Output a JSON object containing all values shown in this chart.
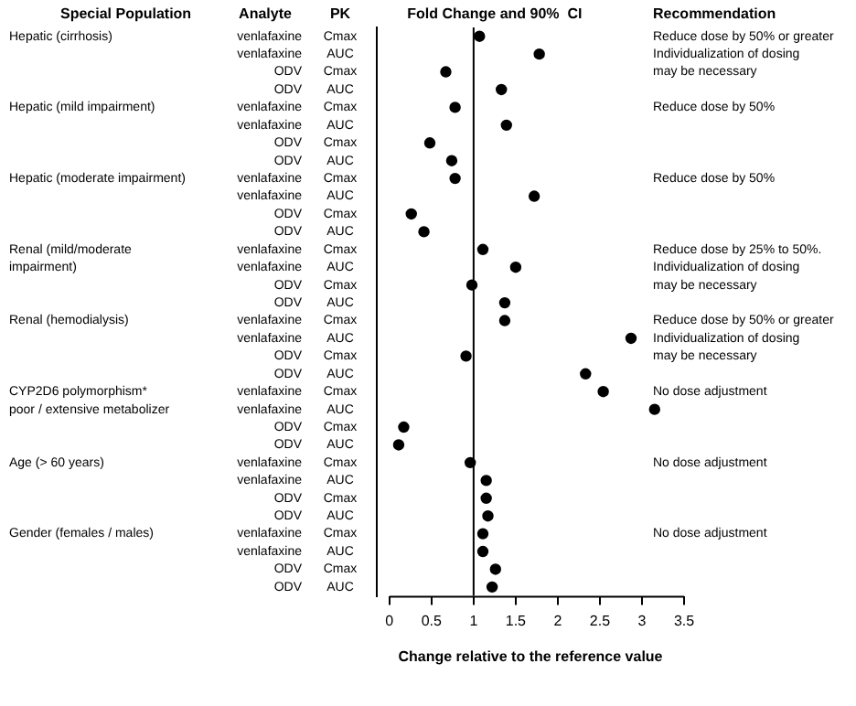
{
  "chart_data": {
    "type": "scatter",
    "orientation": "horizontal",
    "title": "Fold Change and 90%  CI",
    "xlabel": "Change relative to the reference value",
    "categories": [
      "Cmax",
      "AUC",
      "Cmax",
      "AUC",
      "Cmax",
      "AUC",
      "Cmax",
      "AUC",
      "Cmax",
      "AUC",
      "Cmax",
      "AUC",
      "Cmax",
      "AUC",
      "Cmax",
      "AUC",
      "Cmax",
      "AUC",
      "Cmax",
      "AUC",
      "Cmax",
      "AUC",
      "Cmax",
      "AUC",
      "Cmax",
      "AUC",
      "Cmax",
      "AUC",
      "Cmax",
      "AUC",
      "Cmax",
      "AUC"
    ],
    "y2_categories": [
      "venlafaxine",
      "venlafaxine",
      "ODV",
      "ODV",
      "venlafaxine",
      "venlafaxine",
      "ODV",
      "ODV",
      "venlafaxine",
      "venlafaxine",
      "ODV",
      "ODV",
      "venlafaxine",
      "venlafaxine",
      "ODV",
      "ODV",
      "venlafaxine",
      "venlafaxine",
      "ODV",
      "ODV",
      "venlafaxine",
      "venlafaxine",
      "ODV",
      "ODV",
      "venlafaxine",
      "venlafaxine",
      "ODV",
      "ODV",
      "venlafaxine",
      "venlafaxine",
      "ODV",
      "ODV"
    ],
    "series": [
      {
        "color": "#000000",
        "values": [
          1.07,
          1.78,
          0.67,
          1.33,
          0.78,
          1.39,
          0.48,
          0.74,
          0.78,
          1.72,
          0.26,
          0.41,
          1.11,
          1.5,
          0.98,
          1.37,
          1.37,
          2.87,
          0.91,
          2.33,
          2.54,
          3.15,
          0.17,
          0.11,
          0.96,
          1.15,
          1.15,
          1.17,
          1.11,
          1.11,
          1.26,
          1.22
        ]
      }
    ],
    "xlim": [
      -0.15,
      3.5
    ],
    "xticks": [
      0,
      0.5,
      1,
      1.5,
      2,
      2.5,
      3,
      3.5
    ],
    "ref_lines": [
      {
        "axis": "x",
        "value": 1,
        "color": "#000000"
      }
    ],
    "marker": "circle",
    "grid": false,
    "legend": false,
    "annotations": [
      "Special Population",
      "Analyte",
      "PK",
      "Recommendation",
      "Hepatic (cirrhosis)",
      "Hepatic (mild impairment)",
      "Hepatic (moderate impairment)",
      "Renal (mild/moderate\nimpairment)",
      "Renal (hemodialysis)",
      "CYP2D6 polymorphism*\npoor / extensive metabolizer",
      "Age (> 60 years)",
      "Gender (females / males)",
      "Reduce dose by 50% or greater\nIndividualization of dosing\nmay be necessary",
      "Reduce dose by 50%",
      "Reduce dose by 50%",
      "Reduce dose by 25% to 50%.\nIndividualization of dosing\nmay be necessary",
      "Reduce dose by 50% or greater\nIndividualization of dosing\nmay be necessary",
      "No dose adjustment",
      "No dose adjustment",
      "No dose adjustment"
    ]
  }
}
